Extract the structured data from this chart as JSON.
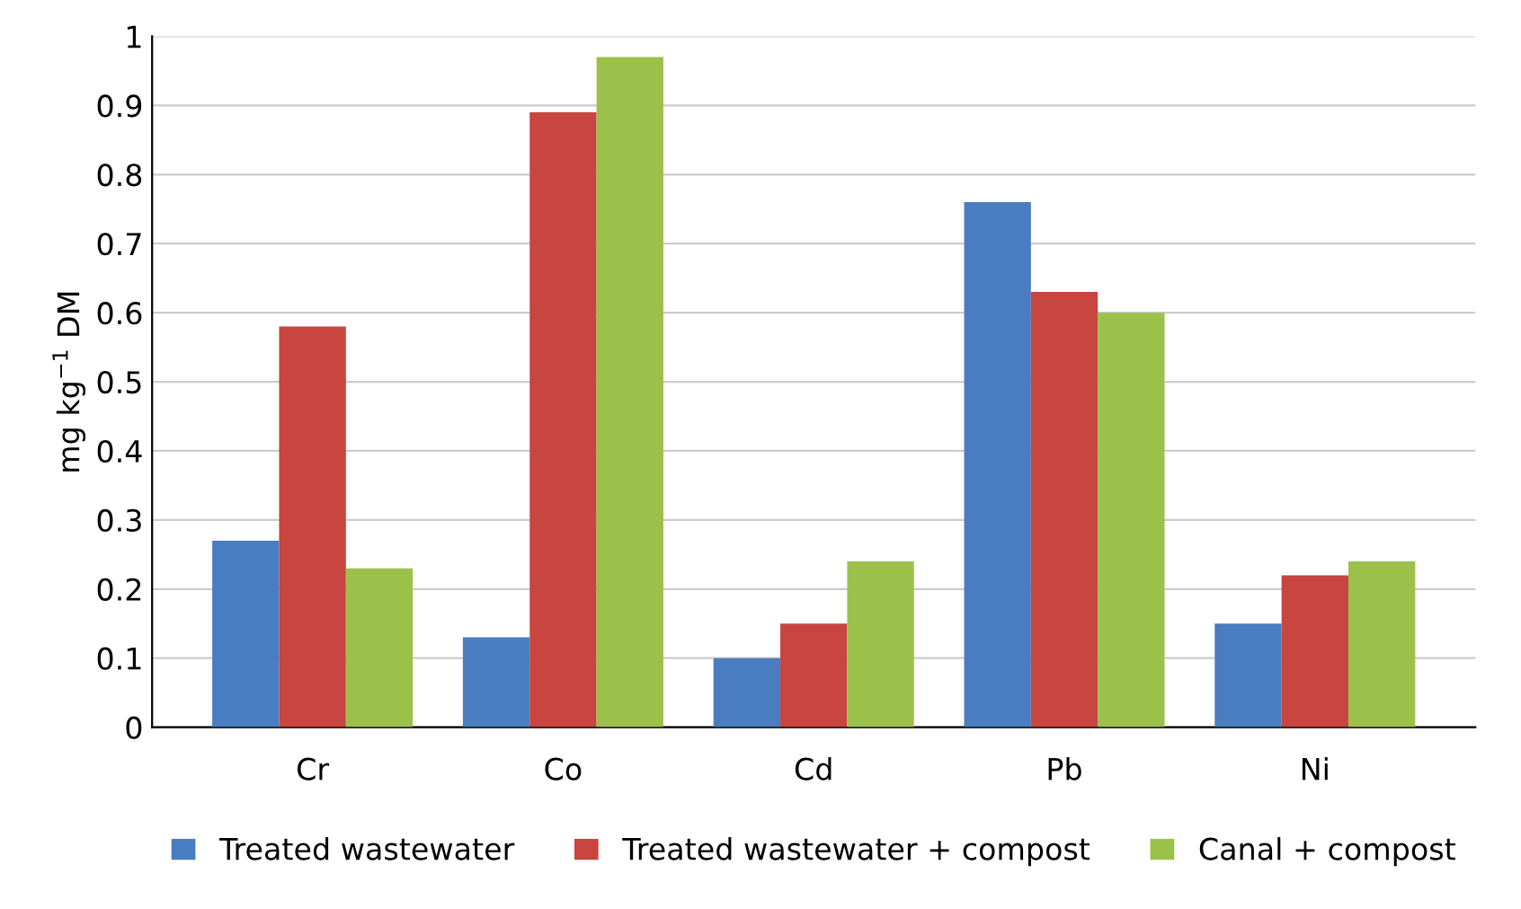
{
  "chart_data": {
    "type": "bar",
    "ylabel": "mg kg$^{−1}$ DM",
    "categories": [
      "Cr",
      "Co",
      "Cd",
      "Pb",
      "Ni"
    ],
    "series": [
      {
        "name": "Treated wastewater",
        "color": "#4a7cc1",
        "values": [
          0.27,
          0.13,
          0.1,
          0.76,
          0.15
        ]
      },
      {
        "name": "Treated wastewater + compost",
        "color": "#c9453f",
        "values": [
          0.58,
          0.89,
          0.15,
          0.63,
          0.22
        ]
      },
      {
        "name": "Canal + compost",
        "color": "#9bc14b",
        "values": [
          0.23,
          0.97,
          0.24,
          0.6,
          0.24
        ]
      }
    ],
    "ylim": [
      0,
      1
    ],
    "yticks": [
      0,
      0.1,
      0.2,
      0.3,
      0.4,
      0.5,
      0.6,
      0.7,
      0.8,
      0.9,
      1
    ],
    "grid": "y",
    "legend": "bottom"
  }
}
